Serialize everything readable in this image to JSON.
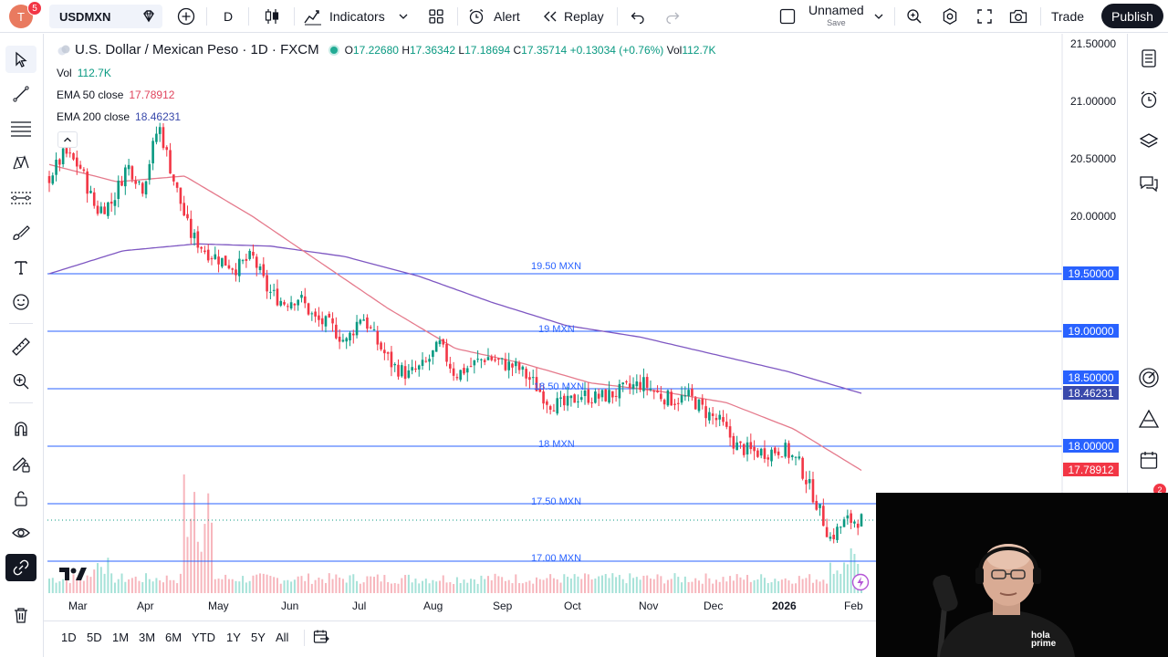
{
  "header": {
    "avatar_letter": "T",
    "avatar_badge": "5",
    "symbol": "USDMXN",
    "interval": "D",
    "indicators_label": "Indicators",
    "alert_label": "Alert",
    "replay_label": "Replay",
    "layout_name": "Unnamed",
    "layout_sub": "Save",
    "trade_label": "Trade",
    "publish_label": "Publish"
  },
  "legend": {
    "title": "U.S. Dollar / Mexican Peso · 1D · FXCM",
    "o_label": "O",
    "o_value": "17.22680",
    "h_label": "H",
    "h_value": "17.36342",
    "l_label": "L",
    "l_value": "17.18694",
    "c_label": "C",
    "c_value": "17.35714",
    "change": "+0.13034 (+0.76%)",
    "vol_label": "Vol",
    "vol_value": "112.7K",
    "vol_row_label": "Vol",
    "vol_row_value": "112.7K",
    "ema50_label": "EMA 50 close",
    "ema50_value": "17.78912",
    "ema200_label": "EMA 200 close",
    "ema200_value": "18.46231"
  },
  "price_axis": {
    "labels": [
      "21.50000",
      "21.00000",
      "20.50000",
      "20.00000"
    ],
    "tags": {
      "t1950": "19.50000",
      "t1900": "19.00000",
      "t1850": "18.50000",
      "t_ema200": "18.46231",
      "t1800": "18.00000",
      "t_ema50": "17.78912"
    }
  },
  "hlines": {
    "l1950": "19.50 MXN",
    "l1900": "19 MXN",
    "l1850": "18.50 MXN",
    "l1800": "18 MXN",
    "l1750": "17.50 MXN",
    "l1700": "17.00 MXN"
  },
  "time_axis": [
    "Mar",
    "Apr",
    "May",
    "Jun",
    "Jul",
    "Aug",
    "Sep",
    "Oct",
    "Nov",
    "Dec",
    "2026",
    "Feb"
  ],
  "ranges": [
    "1D",
    "5D",
    "1M",
    "3M",
    "6M",
    "YTD",
    "1Y",
    "5Y",
    "All"
  ],
  "webcam": {
    "shirt_text_1": "hola",
    "shirt_text_2": "prime"
  },
  "notification_count": "2",
  "colors": {
    "up": "#089981",
    "down": "#f23645",
    "ema50": "#e57a8c",
    "ema200": "#7e57c2",
    "hline": "#2962ff",
    "tag_blue": "#2962ff",
    "tag_ema200": "#3949ab",
    "tag_ema50": "#f23645"
  },
  "chart_data": {
    "type": "candlestick",
    "symbol": "USDMXN",
    "interval": "1D",
    "ylim": [
      16.9,
      21.6
    ],
    "x_labels": [
      "Mar",
      "Apr",
      "May",
      "Jun",
      "Jul",
      "Aug",
      "Sep",
      "Oct",
      "Nov",
      "Dec",
      "2026",
      "Feb"
    ],
    "close_path": [
      {
        "x": "Feb 26",
        "y": 20.34
      },
      {
        "x": "Mar 3",
        "y": 20.55
      },
      {
        "x": "Mar 10",
        "y": 20.42
      },
      {
        "x": "Mar 17",
        "y": 20.05
      },
      {
        "x": "Mar 24",
        "y": 20.12
      },
      {
        "x": "Mar 31",
        "y": 20.45
      },
      {
        "x": "Apr 4",
        "y": 20.25
      },
      {
        "x": "Apr 9",
        "y": 20.8
      },
      {
        "x": "Apr 14",
        "y": 20.3
      },
      {
        "x": "Apr 18",
        "y": 19.85
      },
      {
        "x": "Apr 23",
        "y": 19.7
      },
      {
        "x": "Apr 30",
        "y": 19.62
      },
      {
        "x": "May 7",
        "y": 19.55
      },
      {
        "x": "May 14",
        "y": 19.65
      },
      {
        "x": "May 21",
        "y": 19.35
      },
      {
        "x": "May 28",
        "y": 19.25
      },
      {
        "x": "Jun 4",
        "y": 19.3
      },
      {
        "x": "Jun 11",
        "y": 19.1
      },
      {
        "x": "Jun 18",
        "y": 19.05
      },
      {
        "x": "Jun 25",
        "y": 18.9
      },
      {
        "x": "Jul 2",
        "y": 19.15
      },
      {
        "x": "Jul 9",
        "y": 18.9
      },
      {
        "x": "Jul 16",
        "y": 18.7
      },
      {
        "x": "Jul 23",
        "y": 18.62
      },
      {
        "x": "Jul 30",
        "y": 18.7
      },
      {
        "x": "Aug 4",
        "y": 18.88
      },
      {
        "x": "Aug 11",
        "y": 18.62
      },
      {
        "x": "Aug 18",
        "y": 18.7
      },
      {
        "x": "Aug 25",
        "y": 18.78
      },
      {
        "x": "Sep 1",
        "y": 18.72
      },
      {
        "x": "Sep 8",
        "y": 18.68
      },
      {
        "x": "Sep 15",
        "y": 18.55
      },
      {
        "x": "Sep 22",
        "y": 18.38
      },
      {
        "x": "Sep 29",
        "y": 18.35
      },
      {
        "x": "Oct 6",
        "y": 18.45
      },
      {
        "x": "Oct 13",
        "y": 18.42
      },
      {
        "x": "Oct 20",
        "y": 18.45
      },
      {
        "x": "Oct 27",
        "y": 18.5
      },
      {
        "x": "Nov 3",
        "y": 18.55
      },
      {
        "x": "Nov 10",
        "y": 18.45
      },
      {
        "x": "Nov 17",
        "y": 18.4
      },
      {
        "x": "Nov 24",
        "y": 18.43
      },
      {
        "x": "Dec 1",
        "y": 18.3
      },
      {
        "x": "Dec 8",
        "y": 18.2
      },
      {
        "x": "Dec 15",
        "y": 18.0
      },
      {
        "x": "Dec 22",
        "y": 17.95
      },
      {
        "x": "Dec 29",
        "y": 17.95
      },
      {
        "x": "Jan 5",
        "y": 17.98
      },
      {
        "x": "Jan 12",
        "y": 17.85
      },
      {
        "x": "Jan 19",
        "y": 17.55
      },
      {
        "x": "Jan 26",
        "y": 17.2
      },
      {
        "x": "Jan 30",
        "y": 17.35
      },
      {
        "x": "Feb 3",
        "y": 17.36
      }
    ],
    "ema50": [
      {
        "x": "Feb 26",
        "y": 20.45
      },
      {
        "x": "Mar 31",
        "y": 20.3
      },
      {
        "x": "Apr 14",
        "y": 20.35
      },
      {
        "x": "May 7",
        "y": 20.0
      },
      {
        "x": "Jun 4",
        "y": 19.6
      },
      {
        "x": "Jul 2",
        "y": 19.2
      },
      {
        "x": "Aug 4",
        "y": 18.85
      },
      {
        "x": "Sep 1",
        "y": 18.72
      },
      {
        "x": "Oct 6",
        "y": 18.55
      },
      {
        "x": "Nov 3",
        "y": 18.48
      },
      {
        "x": "Dec 1",
        "y": 18.38
      },
      {
        "x": "Jan 5",
        "y": 18.15
      },
      {
        "x": "Feb 3",
        "y": 17.79
      }
    ],
    "ema200": [
      {
        "x": "Feb 26",
        "y": 19.5
      },
      {
        "x": "Mar 31",
        "y": 19.7
      },
      {
        "x": "Apr 23",
        "y": 19.76
      },
      {
        "x": "May 21",
        "y": 19.74
      },
      {
        "x": "Jun 18",
        "y": 19.65
      },
      {
        "x": "Jul 16",
        "y": 19.48
      },
      {
        "x": "Aug 18",
        "y": 19.25
      },
      {
        "x": "Sep 22",
        "y": 19.05
      },
      {
        "x": "Oct 27",
        "y": 18.95
      },
      {
        "x": "Dec 1",
        "y": 18.8
      },
      {
        "x": "Jan 5",
        "y": 18.65
      },
      {
        "x": "Feb 3",
        "y": 18.46
      }
    ],
    "horizontal_levels": [
      19.5,
      19.0,
      18.5,
      18.0,
      17.5,
      17.0
    ],
    "last_close": 17.35714
  }
}
